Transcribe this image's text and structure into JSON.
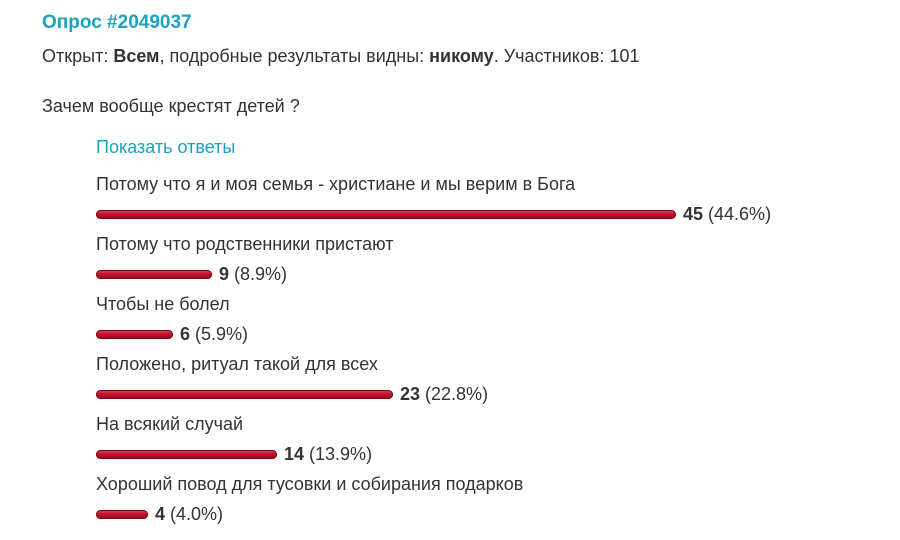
{
  "poll": {
    "title": "Опрос #2049037",
    "meta": {
      "open_label": "Открыт:",
      "open_value": "Всем",
      "results_label": ", подробные результаты видны:",
      "results_value": "никому",
      "participants_label": ". Участников:",
      "participants_value": "101"
    },
    "question": "Зачем вообще крестят детей ?",
    "show_answers_label": "Показать ответы",
    "answers": [
      {
        "label": "Потому что я и моя семья - христиане и мы верим в Бога",
        "count": "45",
        "percent": "(44.6%)",
        "value": 44.6
      },
      {
        "label": "Потому что родственники пристают",
        "count": "9",
        "percent": "(8.9%)",
        "value": 8.9
      },
      {
        "label": "Чтобы не болел",
        "count": "6",
        "percent": "(5.9%)",
        "value": 5.9
      },
      {
        "label": "Положено, ритуал такой для всех",
        "count": "23",
        "percent": "(22.8%)",
        "value": 22.8
      },
      {
        "label": "На всякий случай",
        "count": "14",
        "percent": "(13.9%)",
        "value": 13.9
      },
      {
        "label": "Хороший повод для тусовки и собирания подарков",
        "count": "4",
        "percent": "(4.0%)",
        "value": 4.0
      }
    ],
    "colors": {
      "accent": "#1aa3c0",
      "bar": "#c4122c",
      "text": "#333333"
    }
  }
}
